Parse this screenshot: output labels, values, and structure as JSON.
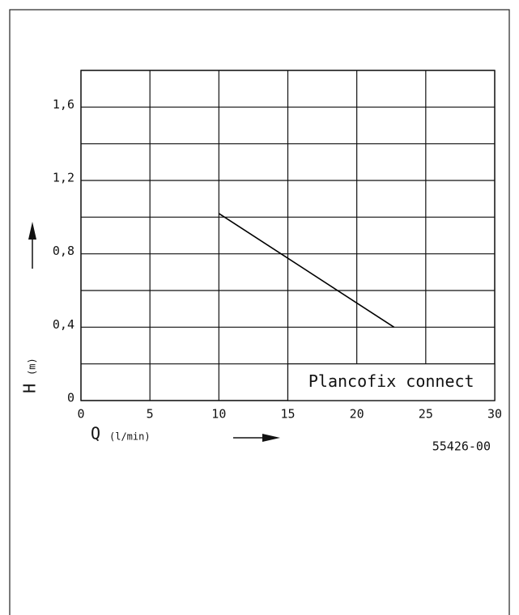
{
  "chart_data": {
    "type": "line",
    "x_symbol": "Q",
    "x_unit": "(l/min)",
    "y_symbol": "H",
    "y_unit": "(m)",
    "legend": "Plancofix connect",
    "code": "55426-00",
    "xlim": [
      0,
      30
    ],
    "xticks": [
      0,
      5,
      10,
      15,
      20,
      25,
      30
    ],
    "ylim": [
      0,
      1.8
    ],
    "yticks": [
      0,
      {
        "value": 0.4,
        "label": "0,4"
      },
      {
        "value": 0.8,
        "label": "0,8"
      },
      {
        "value": 1.2,
        "label": "1,2"
      },
      {
        "value": 1.6,
        "label": "1,6"
      }
    ],
    "y_minor_ticks": [
      0.2,
      0.6,
      1.0,
      1.4,
      1.8
    ],
    "grid": true,
    "series": [
      {
        "color": "#000000",
        "x": [
          10,
          22.7
        ],
        "values": [
          1.02,
          0.4
        ]
      }
    ]
  }
}
